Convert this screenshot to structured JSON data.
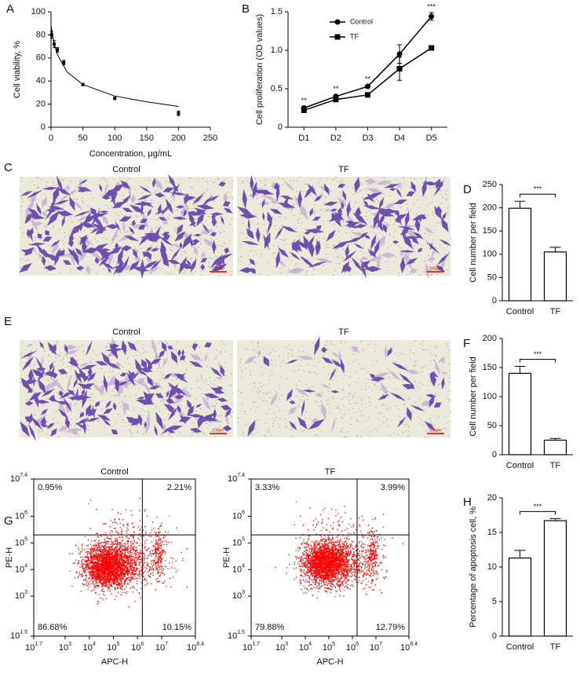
{
  "chart_data": [
    {
      "type": "scatter",
      "panel": "A",
      "x_label": "Concentration, μg/mL",
      "y_label": "Cell viability, %",
      "xlim": [
        0,
        250
      ],
      "ylim": [
        0,
        100
      ],
      "xticks": [
        0,
        50,
        100,
        150,
        200,
        250
      ],
      "yticks": [
        0,
        20,
        40,
        60,
        80,
        100
      ],
      "series": [
        {
          "type": "scatter",
          "color": "#000000",
          "x": [
            1,
            5,
            10,
            20,
            50,
            100,
            200
          ],
          "values": [
            80,
            72,
            67,
            56,
            37,
            25,
            12
          ],
          "errors": [
            3,
            3,
            2,
            2,
            1,
            1,
            2
          ]
        },
        {
          "type": "line",
          "color": "#000000",
          "x": [
            0,
            5,
            10,
            25,
            50,
            100,
            150,
            200
          ],
          "values": [
            88,
            72,
            63,
            48,
            37,
            27,
            22,
            18
          ]
        }
      ]
    },
    {
      "type": "line",
      "panel": "B",
      "y_label": "Cell proliferation (OD values)",
      "categories": [
        "D1",
        "D2",
        "D3",
        "D4",
        "D5"
      ],
      "ylim": [
        0,
        1.5
      ],
      "yticks": [
        0,
        0.5,
        {
          "value": 1,
          "label": "1.0"
        },
        1.5
      ],
      "series": [
        {
          "name": "Control",
          "marker": "circle",
          "color": "#000000",
          "values": [
            0.25,
            0.4,
            0.53,
            0.95,
            1.44
          ],
          "errors": [
            0.02,
            0.02,
            0.02,
            0.12,
            0.05
          ]
        },
        {
          "name": "TF",
          "marker": "square",
          "color": "#000000",
          "values": [
            0.22,
            0.36,
            0.42,
            0.76,
            1.03
          ],
          "errors": [
            0.02,
            0.02,
            0.02,
            0.15,
            0.02
          ]
        }
      ],
      "significance": [
        "**",
        "**",
        "**",
        null,
        "***"
      ]
    },
    {
      "type": "image",
      "panel": "C",
      "images": [
        {
          "title": "Control",
          "scale_bar": "100μm"
        },
        {
          "title": "TF",
          "scale_bar": "100μm"
        }
      ]
    },
    {
      "type": "bar",
      "panel": "D",
      "y_label": "Cell number per field",
      "categories": [
        "Control",
        "TF"
      ],
      "values": [
        199,
        105
      ],
      "errors": [
        15,
        10
      ],
      "significance": "***",
      "color": "#ffffff",
      "ylim": [
        0,
        250
      ],
      "yticks": [
        0,
        50,
        100,
        150,
        200,
        250
      ]
    },
    {
      "type": "image",
      "panel": "E",
      "images": [
        {
          "title": "Control",
          "scale_bar": "100μm"
        },
        {
          "title": "TF",
          "scale_bar": "100μm"
        }
      ]
    },
    {
      "type": "bar",
      "panel": "F",
      "y_label": "Cell number per field",
      "categories": [
        "Control",
        "TF"
      ],
      "values": [
        140,
        25
      ],
      "errors": [
        12,
        3
      ],
      "significance": "***",
      "color": "#ffffff",
      "ylim": [
        0,
        200
      ],
      "yticks": [
        0,
        50,
        100,
        150,
        200
      ]
    },
    {
      "type": "flow",
      "panel": "G",
      "x_label": "APC-H",
      "y_label": "PE-H",
      "color": "#ff0000",
      "xlim": [
        1.7,
        8.4
      ],
      "ylim": [
        1.5,
        7.4
      ],
      "xticks": [
        {
          "value": 1.7,
          "label": "10",
          "exponent": "1.7"
        },
        {
          "value": 3,
          "label": "10",
          "exponent": "3"
        },
        {
          "value": 4,
          "label": "10",
          "exponent": "4"
        },
        {
          "value": 5,
          "label": "10",
          "exponent": "5"
        },
        {
          "value": 6,
          "label": "10",
          "exponent": "6"
        },
        {
          "value": 7,
          "label": "10",
          "exponent": "7"
        },
        {
          "value": 8.4,
          "label": "10",
          "exponent": "8.4"
        }
      ],
      "yticks": [
        {
          "value": 1.5,
          "label": "10",
          "exponent": "1.5"
        },
        {
          "value": 3,
          "label": "10",
          "exponent": "3"
        },
        {
          "value": 4,
          "label": "10",
          "exponent": "4"
        },
        {
          "value": 5,
          "label": "10",
          "exponent": "5"
        },
        {
          "value": 6,
          "label": "10",
          "exponent": "6"
        },
        {
          "value": 7.4,
          "label": "10",
          "exponent": "7.4"
        }
      ],
      "gate": [
        6.2,
        5.3
      ],
      "plots": [
        {
          "title": "Control",
          "values": [
            0.95,
            2.21,
            86.68,
            10.15
          ],
          "value_labels": [
            "0.95%",
            "2.21%",
            "86.68%",
            "10.15%"
          ]
        },
        {
          "title": "TF",
          "values": [
            3.33,
            3.99,
            79.88,
            12.79
          ],
          "value_labels": [
            "3.33%",
            "3.99%",
            "79.88%",
            "12.79%"
          ]
        }
      ]
    },
    {
      "type": "bar",
      "panel": "H",
      "y_label": "Percentage of apoptosis cell, %",
      "categories": [
        "Control",
        "TF"
      ],
      "values": [
        11.3,
        16.7
      ],
      "errors": [
        1.1,
        0.3
      ],
      "significance": "***",
      "color": "#ffffff",
      "ylim": [
        0,
        20
      ],
      "yticks": [
        0,
        5,
        10,
        15,
        20
      ]
    }
  ]
}
